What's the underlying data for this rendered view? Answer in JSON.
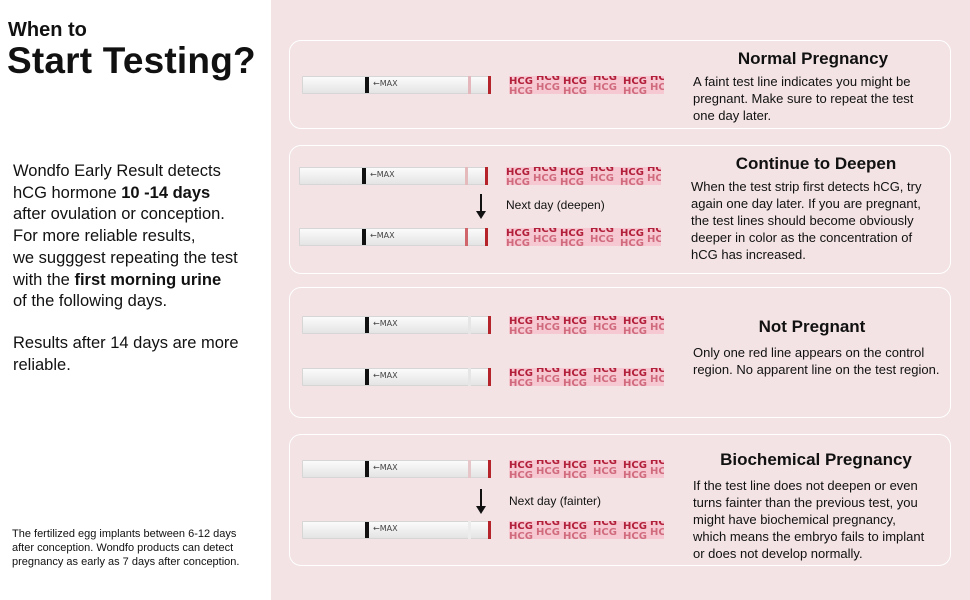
{
  "header": {
    "line1": "When to",
    "line2": "Start Testing?"
  },
  "intro": {
    "line1": "Wondfo Early Result detects",
    "line2_pre": "hCG hormone ",
    "line2_bold": "10 -14 days",
    "line3": "after ovulation or conception.",
    "line4": "For more reliable results,",
    "line5": "we sugggest repeating the test",
    "line6_pre": "with the ",
    "line6_bold": "first morning urine",
    "line7": "of the following days."
  },
  "reliable": {
    "line1": "Results after 14 days are more",
    "line2": "reliable."
  },
  "footnote": {
    "line1": "The fertilized egg implants between 6-12 days",
    "line2": "after conception. Wondfo products can detect",
    "line3": "pregnancy as early as 7 days after conception."
  },
  "strip": {
    "max_label": "←MAX",
    "hcg_text": "HCG"
  },
  "panels": [
    {
      "title": "Normal Pregnancy",
      "lines": [
        "A faint test line indicates you might be",
        "pregnant. Make sure to repeat the test",
        "one day later."
      ]
    },
    {
      "title": "Continue to Deepen",
      "next_label": "Next day (deepen)",
      "lines": [
        "When the test strip first detects hCG, try",
        "again one day later. If you are pregnant,",
        "the test lines should  become obviously",
        "deeper in color as the concentration of",
        "hCG has increased."
      ]
    },
    {
      "title": "Not Pregnant",
      "lines": [
        "Only one red line appears on the control",
        "region. No apparent line on the test region."
      ]
    },
    {
      "title": "Biochemical Pregnancy",
      "next_label": "Next day (fainter)",
      "lines": [
        "If the test line does not deepen or even",
        "turns fainter than the previous test, you",
        "might have biochemical pregnancy,",
        "which means the embryo fails to implant",
        "or does not develop normally."
      ]
    }
  ],
  "colors": {
    "panel_bg": "#f3e3e4",
    "control_line": "#b5232b",
    "wrapper": "#f6c9d2",
    "hcg_text": "#b21f3a"
  }
}
